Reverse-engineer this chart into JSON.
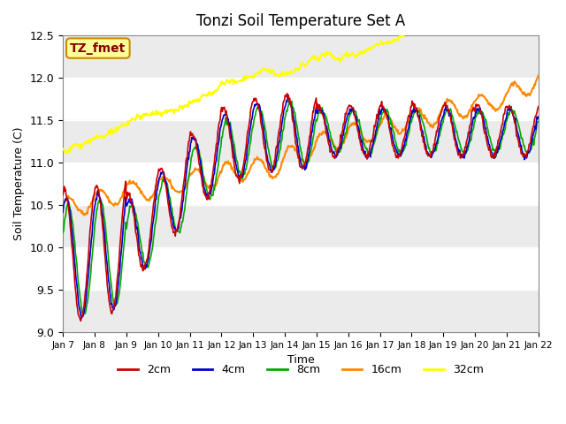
{
  "title": "Tonzi Soil Temperature Set A",
  "xlabel": "Time",
  "ylabel": "Soil Temperature (C)",
  "ylim": [
    9.0,
    12.5
  ],
  "yticks": [
    9.0,
    9.5,
    10.0,
    10.5,
    11.0,
    11.5,
    12.0,
    12.5
  ],
  "colors": {
    "2cm": "#cc0000",
    "4cm": "#0000cc",
    "8cm": "#00aa00",
    "16cm": "#ff8800",
    "32cm": "#ffff00"
  },
  "legend_labels": [
    "2cm",
    "4cm",
    "8cm",
    "16cm",
    "32cm"
  ],
  "annotation_text": "TZ_fmet",
  "annotation_bg": "#ffff99",
  "annotation_border": "#cc8800",
  "annotation_text_color": "#880000",
  "band_color": "#e8e8e8",
  "n_points": 720,
  "xtick_labels": [
    "Jan 7",
    "Jan 8",
    "Jan 9",
    "Jan 10",
    "Jan 11",
    "Jan 12",
    "Jan 13",
    "Jan 14",
    "Jan 15",
    "Jan 16",
    "Jan 17",
    "Jan 18",
    "Jan 19",
    "Jan 20",
    "Jan 21",
    "Jan 22"
  ]
}
